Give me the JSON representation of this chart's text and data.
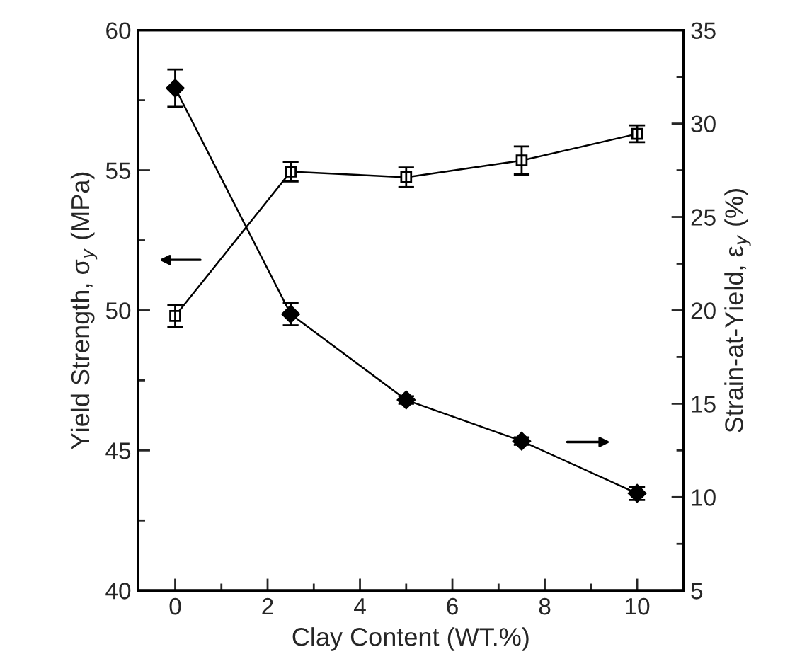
{
  "chart_data": {
    "type": "line",
    "xlabel": "Clay Content (WT.%)",
    "ylabel": "Yield Strength, σ$_{y}$ (MPa)",
    "y2label": "Strain-at-Yield, ε$_{y}$ (%)",
    "x": [
      0,
      2.5,
      5,
      7.5,
      10
    ],
    "xlim": [
      -0.8,
      11
    ],
    "xticks": [
      0,
      2,
      4,
      6,
      8,
      10
    ],
    "ylim": [
      40,
      60
    ],
    "yticks": [
      40,
      45,
      50,
      55,
      60
    ],
    "y2lim": [
      5,
      35
    ],
    "y2ticks": [
      5,
      10,
      15,
      20,
      25,
      30,
      35
    ],
    "grid": false,
    "series": [
      {
        "color": "#000000",
        "marker": "square",
        "values": [
          49.8,
          54.95,
          54.75,
          55.35,
          56.3
        ],
        "errors": [
          0.4,
          0.35,
          0.35,
          0.5,
          0.3
        ]
      },
      {
        "color": "#000000",
        "marker": "diamond",
        "axis": "y2",
        "values": [
          31.9,
          19.8,
          15.2,
          13.0,
          10.2
        ],
        "errors": [
          1.0,
          0.6,
          0.2,
          0.2,
          0.35
        ]
      }
    ]
  }
}
